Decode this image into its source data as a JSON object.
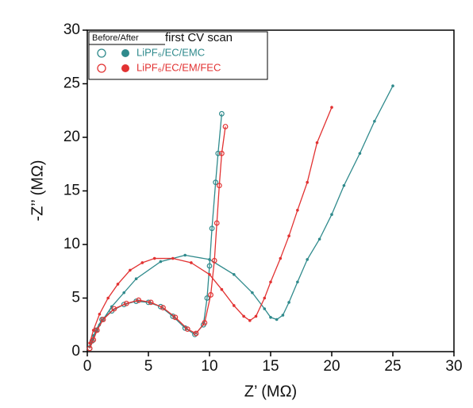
{
  "chart_data": {
    "type": "scatter",
    "xlabel": "Z’ (MΩ)",
    "ylabel": "-Z’’ (MΩ)",
    "xlim": [
      0,
      30
    ],
    "ylim": [
      0,
      30
    ],
    "xticks": [
      0,
      5,
      10,
      15,
      20,
      25,
      30
    ],
    "yticks": [
      0,
      5,
      10,
      15,
      20,
      25,
      30
    ],
    "legend_header": "Before/After",
    "legend_title": "first CV scan",
    "series": [
      {
        "name": "LiPF₆/EC/EMC",
        "color": "#2f8a8c",
        "before": {
          "x": [
            0.2,
            0.4,
            0.7,
            1.2,
            2,
            3,
            4,
            5,
            6,
            7,
            8,
            8.8,
            9.5,
            9.8,
            10,
            10.2,
            10.5,
            10.7,
            11
          ],
          "y": [
            0.3,
            1,
            2,
            3,
            3.8,
            4.4,
            4.7,
            4.6,
            4.2,
            3.3,
            2.2,
            1.6,
            2.5,
            5,
            8,
            11.5,
            15.8,
            18.5,
            22.2
          ]
        },
        "after": {
          "x": [
            0.2,
            0.5,
            1,
            2,
            3,
            4,
            6,
            8,
            10,
            12,
            13.5,
            14.5,
            15,
            15.5,
            16,
            16.5,
            17.2,
            18,
            19,
            20,
            21,
            22.3,
            23.5,
            25
          ],
          "y": [
            0.5,
            1.5,
            2.5,
            4.2,
            5.5,
            6.8,
            8.4,
            9,
            8.6,
            7.2,
            5.5,
            4,
            3.2,
            3,
            3.4,
            4.6,
            6.5,
            8.6,
            10.5,
            12.8,
            15.5,
            18.5,
            21.5,
            24.8
          ]
        }
      },
      {
        "name": "LiPF₆/EC/EM/FEC",
        "color": "#e23232",
        "before": {
          "x": [
            0.2,
            0.5,
            0.8,
            1.3,
            2.2,
            3.2,
            4.2,
            5.2,
            6.2,
            7.2,
            8.2,
            8.9,
            9.6,
            10.1,
            10.4,
            10.6,
            10.8,
            11,
            11.3
          ],
          "y": [
            0.3,
            1.1,
            2,
            3,
            4,
            4.5,
            4.8,
            4.6,
            4.1,
            3.2,
            2.1,
            1.7,
            2.7,
            5.3,
            8.5,
            12,
            15.5,
            18.5,
            21
          ]
        },
        "after": {
          "x": [
            0.2,
            0.5,
            1,
            1.7,
            2.5,
            3.5,
            4.5,
            5.5,
            7,
            8.5,
            10,
            11,
            12,
            12.8,
            13.3,
            13.8,
            14.5,
            15,
            15.8,
            16.5,
            17.2,
            18,
            18.8,
            20
          ],
          "y": [
            0.8,
            2,
            3.5,
            5,
            6.3,
            7.6,
            8.3,
            8.7,
            8.7,
            8.3,
            7.2,
            5.8,
            4.3,
            3.3,
            2.9,
            3.3,
            5,
            6.5,
            8.7,
            10.8,
            13.2,
            15.8,
            19.5,
            22.8
          ]
        }
      }
    ]
  }
}
